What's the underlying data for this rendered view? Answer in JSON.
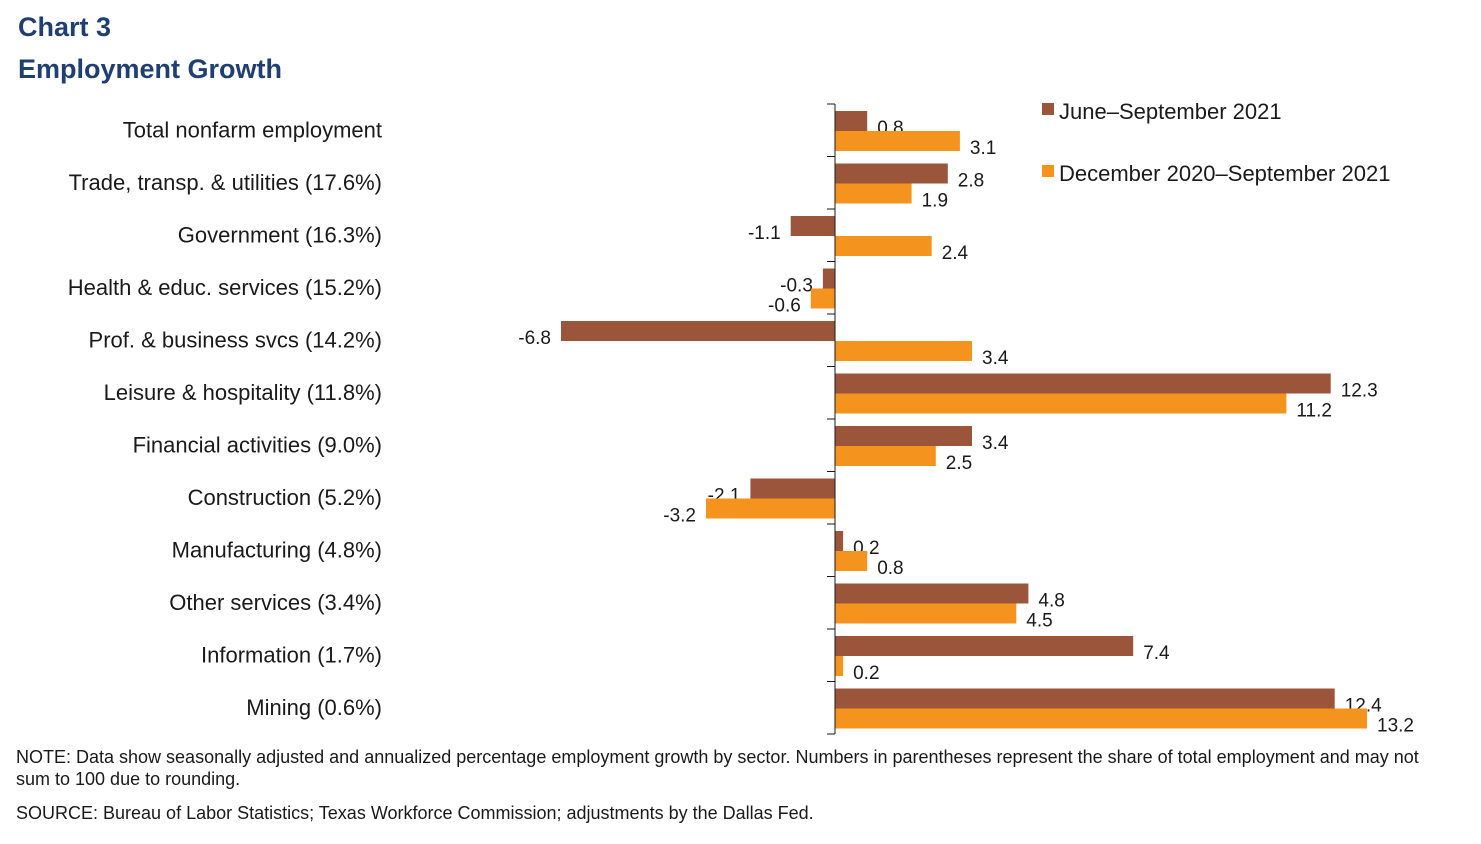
{
  "header": {
    "chart_number": "Chart 3",
    "title": "Employment Growth"
  },
  "chart_data": {
    "type": "bar",
    "orientation": "horizontal",
    "title": "Employment Growth",
    "xlabel": "",
    "ylabel": "",
    "xlim": [
      -6.8,
      13.2
    ],
    "categories": [
      "Total nonfarm employment",
      "Trade, transp. & utilities (17.6%)",
      "Government (16.3%)",
      "Health & educ. services (15.2%)",
      "Prof. & business svcs (14.2%)",
      "Leisure & hospitality (11.8%)",
      "Financial activities (9.0%)",
      "Construction (5.2%)",
      "Manufacturing (4.8%)",
      "Other services (3.4%)",
      "Information (1.7%)",
      "Mining (0.6%)"
    ],
    "series": [
      {
        "name": "June–September 2021",
        "color": "#9b553a",
        "values": [
          0.8,
          2.8,
          -1.1,
          -0.3,
          -6.8,
          12.3,
          3.4,
          -2.1,
          0.2,
          4.8,
          7.4,
          12.4
        ],
        "labels": [
          "0.8",
          "2.8",
          "-1.1",
          "-0.3",
          "-6.8",
          "12.3",
          "3.4",
          "-2.1",
          "0.2",
          "4.8",
          "7.4",
          "12.4"
        ]
      },
      {
        "name": "December 2020–September 2021",
        "color": "#f5931f",
        "values": [
          3.1,
          1.9,
          2.4,
          -0.6,
          3.4,
          11.2,
          2.5,
          -3.2,
          0.8,
          4.5,
          0.2,
          13.2
        ],
        "labels": [
          "3.1",
          "1.9",
          "2.4",
          "-0.6",
          "3.4",
          "11.2",
          "2.5",
          "-3.2",
          "0.8",
          "4.5",
          "0.2",
          "13.2"
        ]
      }
    ],
    "legend": "top-right"
  },
  "notes": {
    "note": "NOTE: Data show seasonally adjusted and annualized percentage employment growth by sector. Numbers in parentheses represent the share of total employment and may not sum to 100 due to rounding.",
    "source": "SOURCE: Bureau of Labor Statistics; Texas Workforce Commission; adjustments by the Dallas Fed."
  }
}
